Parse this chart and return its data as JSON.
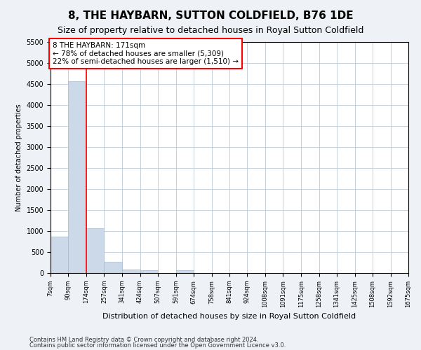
{
  "title": "8, THE HAYBARN, SUTTON COLDFIELD, B76 1DE",
  "subtitle": "Size of property relative to detached houses in Royal Sutton Coldfield",
  "xlabel": "Distribution of detached houses by size in Royal Sutton Coldfield",
  "ylabel": "Number of detached properties",
  "footnote1": "Contains HM Land Registry data © Crown copyright and database right 2024.",
  "footnote2": "Contains public sector information licensed under the Open Government Licence v3.0.",
  "bar_color": "#ccd9e8",
  "bar_edgecolor": "#a8bdd0",
  "annotation_text": "8 THE HAYBARN: 171sqm\n← 78% of detached houses are smaller (5,309)\n22% of semi-detached houses are larger (1,510) →",
  "annotation_box_color": "white",
  "annotation_box_edgecolor": "red",
  "vline_x": 174,
  "vline_color": "red",
  "ylim": [
    0,
    5500
  ],
  "yticks": [
    0,
    500,
    1000,
    1500,
    2000,
    2500,
    3000,
    3500,
    4000,
    4500,
    5000,
    5500
  ],
  "bin_edges": [
    7,
    90,
    174,
    257,
    341,
    424,
    507,
    591,
    674,
    758,
    841,
    924,
    1008,
    1091,
    1175,
    1258,
    1341,
    1425,
    1508,
    1592,
    1675
  ],
  "bar_heights": [
    870,
    4560,
    1060,
    270,
    85,
    70,
    0,
    60,
    0,
    0,
    0,
    0,
    0,
    0,
    0,
    0,
    0,
    0,
    0,
    0
  ],
  "tick_labels": [
    "7sqm",
    "90sqm",
    "174sqm",
    "257sqm",
    "341sqm",
    "424sqm",
    "507sqm",
    "591sqm",
    "674sqm",
    "758sqm",
    "841sqm",
    "924sqm",
    "1008sqm",
    "1091sqm",
    "1175sqm",
    "1258sqm",
    "1341sqm",
    "1425sqm",
    "1508sqm",
    "1592sqm",
    "1675sqm"
  ],
  "background_color": "#eef2f6",
  "plot_background": "white",
  "grid_color": "#c5d0db",
  "title_fontsize": 11,
  "subtitle_fontsize": 9,
  "annotation_fontsize": 7.5,
  "ylabel_fontsize": 7,
  "xlabel_fontsize": 8,
  "ytick_fontsize": 7,
  "xtick_fontsize": 6
}
